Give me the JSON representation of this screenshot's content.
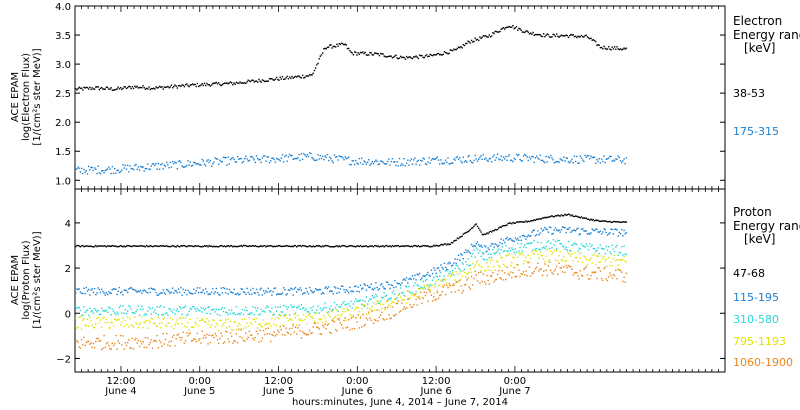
{
  "chart_data": [
    {
      "type": "scatter",
      "panel": "top",
      "ylabel": [
        "ACE EPAM",
        "log(Electron Flux)",
        "[1/(cm²s ster MeV)]"
      ],
      "ylim": [
        0.85,
        4.0
      ],
      "yticks": [
        1.0,
        1.5,
        2.0,
        2.5,
        3.0,
        3.5,
        4.0
      ],
      "ytick_labels": [
        "1.0",
        "1.5",
        "2.0",
        "2.5",
        "3.0",
        "3.5",
        "4.0"
      ],
      "legend_title": [
        "Electron",
        "Energy range",
        "[keV]"
      ],
      "series": [
        {
          "name": "38-53",
          "color": "#000000",
          "x": [
            0,
            3,
            6,
            9,
            12,
            18,
            24,
            30,
            33,
            36,
            38,
            41,
            42,
            46,
            50,
            54,
            58,
            60,
            63,
            66,
            69,
            72,
            75,
            78,
            80,
            84
          ],
          "y": [
            2.58,
            2.6,
            2.58,
            2.62,
            2.6,
            2.65,
            2.68,
            2.75,
            2.78,
            2.82,
            3.3,
            3.35,
            3.2,
            3.18,
            3.12,
            3.15,
            3.25,
            3.4,
            3.5,
            3.68,
            3.55,
            3.5,
            3.5,
            3.48,
            3.3,
            3.27
          ]
        },
        {
          "name": "175-315",
          "color": "#1a7fd0",
          "x": [
            0,
            6,
            12,
            18,
            24,
            30,
            36,
            42,
            48,
            54,
            60,
            66,
            72,
            78,
            84
          ],
          "y": [
            1.18,
            1.2,
            1.25,
            1.3,
            1.35,
            1.38,
            1.42,
            1.35,
            1.32,
            1.35,
            1.38,
            1.4,
            1.38,
            1.37,
            1.36
          ]
        }
      ]
    },
    {
      "type": "scatter",
      "panel": "bottom",
      "ylabel": [
        "ACE EPAM",
        "log(Proton Flux)",
        "[1/(cm²s ster MeV)]"
      ],
      "ylim": [
        -2.6,
        5.5
      ],
      "yticks": [
        -2,
        0,
        2,
        4
      ],
      "ytick_labels": [
        "−2",
        "0",
        "2",
        "4"
      ],
      "legend_title": [
        "Proton",
        "Energy range",
        "[keV]"
      ],
      "series": [
        {
          "name": "47-68",
          "color": "#000000",
          "x": [
            0,
            12,
            24,
            36,
            48,
            54,
            57,
            60,
            61,
            62,
            63,
            66,
            69,
            72,
            75,
            78,
            80,
            84
          ],
          "y": [
            3.0,
            3.0,
            3.0,
            3.0,
            3.0,
            3.0,
            3.1,
            3.7,
            4.0,
            3.5,
            3.6,
            4.0,
            4.1,
            4.3,
            4.4,
            4.2,
            4.1,
            4.05
          ]
        },
        {
          "name": "115-195",
          "color": "#1a7fd0",
          "x": [
            0,
            12,
            24,
            36,
            42,
            48,
            51,
            54,
            57,
            60,
            61,
            62,
            63,
            66,
            69,
            72,
            75,
            78,
            84
          ],
          "y": [
            1.0,
            1.0,
            1.0,
            1.0,
            1.1,
            1.3,
            1.5,
            1.8,
            2.2,
            2.8,
            3.2,
            2.8,
            3.0,
            3.3,
            3.5,
            3.7,
            3.7,
            3.65,
            3.6
          ]
        },
        {
          "name": "310-580",
          "color": "#23d7d7",
          "x": [
            0,
            12,
            24,
            30,
            36,
            42,
            48,
            51,
            54,
            57,
            60,
            61,
            62,
            63,
            66,
            69,
            72,
            75,
            78,
            84
          ],
          "y": [
            0.15,
            0.15,
            0.15,
            0.15,
            0.2,
            0.4,
            0.8,
            1.1,
            1.4,
            1.8,
            2.3,
            2.8,
            2.5,
            2.6,
            2.9,
            3.0,
            3.1,
            3.0,
            2.9,
            2.8
          ]
        },
        {
          "name": "795-1193",
          "color": "#e1e106",
          "x": [
            0,
            12,
            24,
            30,
            36,
            42,
            48,
            51,
            54,
            57,
            60,
            61,
            62,
            63,
            66,
            69,
            72,
            75,
            78,
            84
          ],
          "y": [
            -0.4,
            -0.4,
            -0.5,
            -0.3,
            -0.2,
            0.0,
            0.5,
            0.8,
            1.1,
            1.5,
            1.9,
            2.3,
            2.0,
            2.1,
            2.4,
            2.5,
            2.6,
            2.5,
            2.4,
            2.3
          ]
        },
        {
          "name": "1060-1900",
          "color": "#e8861c",
          "x": [
            0,
            12,
            24,
            30,
            36,
            42,
            48,
            51,
            54,
            57,
            60,
            61,
            62,
            63,
            66,
            69,
            72,
            75,
            78,
            84
          ],
          "y": [
            -1.3,
            -1.2,
            -1.0,
            -0.9,
            -0.7,
            -0.4,
            0.1,
            0.5,
            0.8,
            1.1,
            1.3,
            1.7,
            1.5,
            1.6,
            1.8,
            2.0,
            2.0,
            1.9,
            1.8,
            1.7
          ]
        }
      ]
    }
  ],
  "x_axis": {
    "range_hours": [
      0,
      99
    ],
    "ticks": [
      {
        "hour": 7,
        "time": "12:00",
        "date": "June 4"
      },
      {
        "hour": 19,
        "time": "0:00",
        "date": "June 5"
      },
      {
        "hour": 31,
        "time": "12:00",
        "date": "June 5"
      },
      {
        "hour": 43,
        "time": "0:00",
        "date": "June 6"
      },
      {
        "hour": 55,
        "time": "12:00",
        "date": "June 6"
      },
      {
        "hour": 67,
        "time": "0:00",
        "date": "June 7"
      }
    ],
    "label": "hours:minutes, June  4, 2014 – June  7, 2014"
  }
}
